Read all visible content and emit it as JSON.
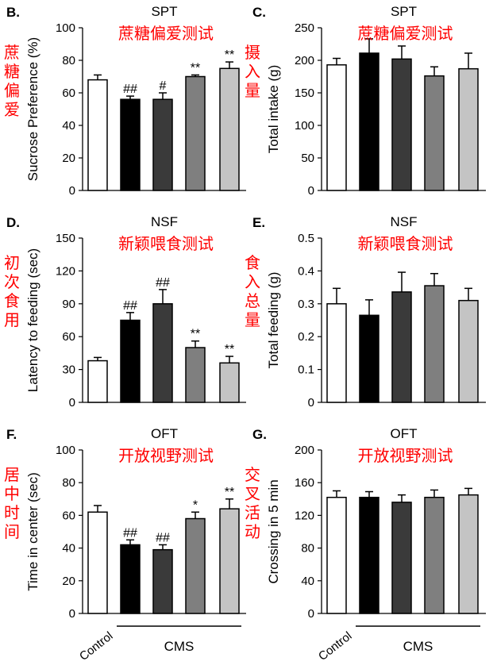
{
  "colors": {
    "bars": [
      "#ffffff",
      "#000000",
      "#3a3a3a",
      "#7f7f7f",
      "#c4c4c4"
    ],
    "annotation": "#ff0000",
    "axis": "#000000"
  },
  "group_labels": {
    "control": "Control",
    "cms": "CMS"
  },
  "chart_data": [
    {
      "id": "B",
      "panel_letter": "B.",
      "type": "bar",
      "title": "SPT",
      "title_cn": "蔗糖偏爱测试",
      "ylabel": "Sucrose Preference (%)",
      "ylabel_cn": "蔗糖偏爱",
      "ylim": [
        0,
        100
      ],
      "yticks": [
        "0",
        "20",
        "40",
        "60",
        "80",
        "100"
      ],
      "values": [
        68,
        56,
        56,
        70,
        75
      ],
      "errors": [
        3,
        2,
        4,
        1,
        4
      ],
      "marks": [
        "",
        "##",
        "#",
        "**",
        "**"
      ]
    },
    {
      "id": "C",
      "panel_letter": "C.",
      "type": "bar",
      "title": "SPT",
      "title_cn": "蔗糖偏爱测试",
      "ylabel": "Total intake (g)",
      "ylabel_cn": "摄入量",
      "ylim": [
        0,
        250
      ],
      "yticks": [
        "0",
        "50",
        "100",
        "150",
        "200",
        "250"
      ],
      "values": [
        193,
        211,
        202,
        176,
        187
      ],
      "errors": [
        10,
        22,
        20,
        14,
        24
      ],
      "marks": [
        "",
        "",
        "",
        "",
        ""
      ]
    },
    {
      "id": "D",
      "panel_letter": "D.",
      "type": "bar",
      "title": "NSF",
      "title_cn": "新颖喂食测试",
      "ylabel": "Latency to feeding (sec)",
      "ylabel_cn": "初次食用",
      "ylim": [
        0,
        150
      ],
      "yticks": [
        "0",
        "30",
        "60",
        "90",
        "120",
        "150"
      ],
      "values": [
        38,
        75,
        90,
        50,
        36
      ],
      "errors": [
        3,
        7,
        13,
        6,
        6
      ],
      "marks": [
        "",
        "##",
        "##",
        "**",
        "**"
      ]
    },
    {
      "id": "E",
      "panel_letter": "E.",
      "type": "bar",
      "title": "NSF",
      "title_cn": "新颖喂食测试",
      "ylabel": "Total feeding (g)",
      "ylabel_cn": "食入总量",
      "ylim": [
        0,
        0.5
      ],
      "yticks": [
        "0",
        "0.1",
        "0.2",
        "0.3",
        "0.4",
        "0.5"
      ],
      "values": [
        0.3,
        0.265,
        0.336,
        0.355,
        0.31
      ],
      "errors": [
        0.047,
        0.047,
        0.06,
        0.037,
        0.037
      ],
      "marks": [
        "",
        "",
        "",
        "",
        ""
      ]
    },
    {
      "id": "F",
      "panel_letter": "F.",
      "type": "bar",
      "title": "OFT",
      "title_cn": "开放视野测试",
      "ylabel": "Time in center (sec)",
      "ylabel_cn": "居中时间",
      "ylim": [
        0,
        100
      ],
      "yticks": [
        "0",
        "20",
        "40",
        "60",
        "80",
        "100"
      ],
      "values": [
        62,
        42,
        39,
        58,
        64
      ],
      "errors": [
        4,
        3,
        3,
        4,
        6
      ],
      "marks": [
        "",
        "##",
        "##",
        "*",
        "**"
      ]
    },
    {
      "id": "G",
      "panel_letter": "G.",
      "type": "bar",
      "title": "OFT",
      "title_cn": "开放视野测试",
      "ylabel": "Crossing in 5 min",
      "ylabel_cn": "交叉活动",
      "ylim": [
        0,
        200
      ],
      "yticks": [
        "0",
        "40",
        "80",
        "120",
        "160",
        "200"
      ],
      "values": [
        142,
        142,
        136,
        142,
        145
      ],
      "errors": [
        8,
        7,
        9,
        9,
        8
      ],
      "marks": [
        "",
        "",
        "",
        "",
        ""
      ]
    }
  ]
}
